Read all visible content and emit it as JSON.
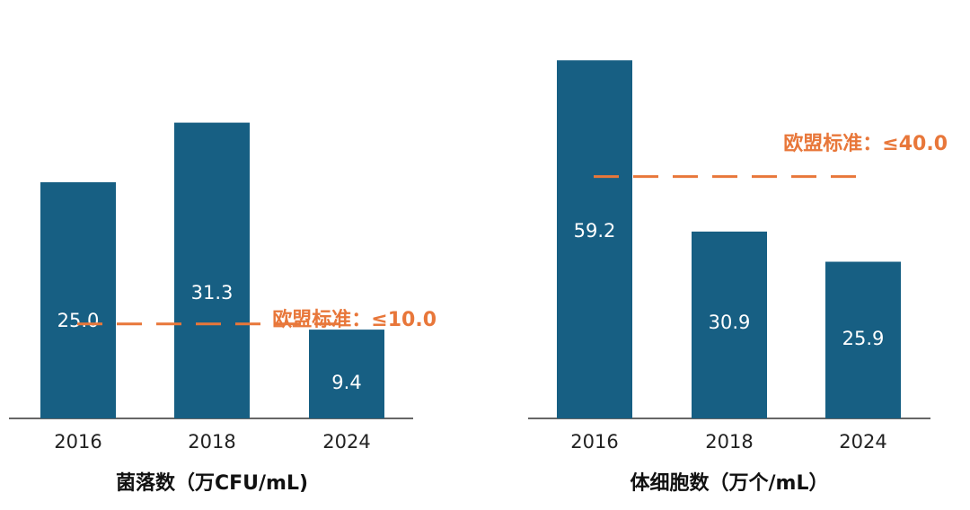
{
  "colors": {
    "bar": "#175f83",
    "reference": "#e8773a",
    "axis": "#333333"
  },
  "chart_data": [
    {
      "type": "bar",
      "title": "",
      "xlabel": "菌落数（万CFU/mL)",
      "ylabel": "",
      "categories": [
        "2016",
        "2018",
        "2024"
      ],
      "values": [
        25.0,
        31.3,
        9.4
      ],
      "value_labels": [
        "25.0",
        "31.3",
        "9.4"
      ],
      "ylim": [
        0,
        40
      ],
      "grid": false,
      "reference_line": {
        "value": 10.0,
        "label": "欧盟标准：≤10.0",
        "style": "dashed"
      }
    },
    {
      "type": "bar",
      "title": "",
      "xlabel": "体细胞数（万个/mL）",
      "ylabel": "",
      "categories": [
        "2016",
        "2018",
        "2024"
      ],
      "values": [
        59.2,
        30.9,
        25.9
      ],
      "value_labels": [
        "59.2",
        "30.9",
        "25.9"
      ],
      "ylim": [
        0,
        62.5
      ],
      "grid": false,
      "reference_line": {
        "value": 40.0,
        "label": "欧盟标准：≤40.0",
        "style": "dashed"
      }
    }
  ]
}
